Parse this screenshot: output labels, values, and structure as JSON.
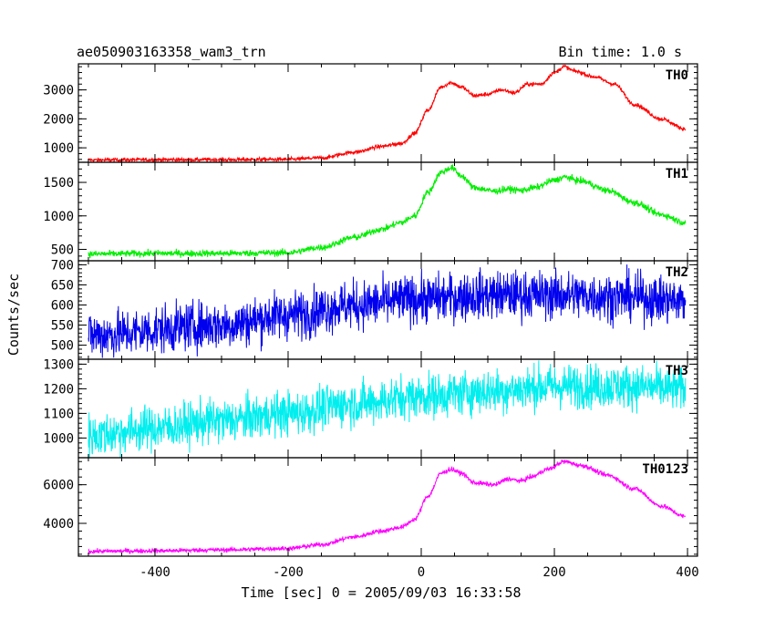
{
  "chart_data": {
    "type": "line",
    "title": "ae050903163358_wam3_trn",
    "subtitle": "Bin time: 1.0 s",
    "xlabel": "Time [sec] 0 = 2005/09/03 16:33:58",
    "ylabel": "Counts/sec",
    "xlim": [
      -515,
      415
    ],
    "x_ticks": [
      -400,
      -200,
      0,
      200,
      400
    ],
    "grid": false,
    "panels": [
      {
        "name": "TH0",
        "color": "#ff0000",
        "ylim": [
          500,
          3900
        ],
        "y_ticks": [
          1000,
          2000,
          3000
        ],
        "noise": 35,
        "curve": [
          [
            -500,
            580
          ],
          [
            -400,
            590
          ],
          [
            -300,
            590
          ],
          [
            -200,
            600
          ],
          [
            -150,
            650
          ],
          [
            -100,
            850
          ],
          [
            -60,
            1050
          ],
          [
            -30,
            1150
          ],
          [
            -10,
            1500
          ],
          [
            10,
            2300
          ],
          [
            30,
            3100
          ],
          [
            45,
            3250
          ],
          [
            60,
            3100
          ],
          [
            80,
            2800
          ],
          [
            100,
            2850
          ],
          [
            120,
            3000
          ],
          [
            140,
            2900
          ],
          [
            160,
            3200
          ],
          [
            180,
            3200
          ],
          [
            200,
            3600
          ],
          [
            215,
            3800
          ],
          [
            230,
            3650
          ],
          [
            260,
            3450
          ],
          [
            290,
            3200
          ],
          [
            320,
            2500
          ],
          [
            360,
            2000
          ],
          [
            397,
            1650
          ]
        ]
      },
      {
        "name": "TH1",
        "color": "#00ee00",
        "ylim": [
          330,
          1800
        ],
        "y_ticks": [
          500,
          1000,
          1500
        ],
        "noise": 25,
        "curve": [
          [
            -500,
            430
          ],
          [
            -400,
            440
          ],
          [
            -300,
            440
          ],
          [
            -200,
            450
          ],
          [
            -150,
            530
          ],
          [
            -100,
            680
          ],
          [
            -60,
            800
          ],
          [
            -30,
            900
          ],
          [
            -10,
            1000
          ],
          [
            10,
            1350
          ],
          [
            30,
            1650
          ],
          [
            45,
            1720
          ],
          [
            60,
            1600
          ],
          [
            80,
            1420
          ],
          [
            110,
            1370
          ],
          [
            130,
            1400
          ],
          [
            150,
            1380
          ],
          [
            170,
            1420
          ],
          [
            200,
            1530
          ],
          [
            215,
            1580
          ],
          [
            240,
            1520
          ],
          [
            280,
            1380
          ],
          [
            320,
            1200
          ],
          [
            360,
            1020
          ],
          [
            397,
            900
          ]
        ]
      },
      {
        "name": "TH2",
        "color": "#0000ee",
        "ylim": [
          465,
          710
        ],
        "y_ticks": [
          500,
          550,
          600,
          650,
          700
        ],
        "noise": 30,
        "curve": [
          [
            -500,
            525
          ],
          [
            -300,
            550
          ],
          [
            -200,
            575
          ],
          [
            -100,
            600
          ],
          [
            0,
            615
          ],
          [
            100,
            625
          ],
          [
            200,
            625
          ],
          [
            300,
            620
          ],
          [
            397,
            610
          ]
        ]
      },
      {
        "name": "TH3",
        "color": "#00eeee",
        "ylim": [
          920,
          1320
        ],
        "y_ticks": [
          1000,
          1100,
          1200,
          1300
        ],
        "noise": 45,
        "curve": [
          [
            -500,
            1010
          ],
          [
            -400,
            1040
          ],
          [
            -300,
            1070
          ],
          [
            -200,
            1100
          ],
          [
            -100,
            1140
          ],
          [
            0,
            1170
          ],
          [
            100,
            1190
          ],
          [
            200,
            1210
          ],
          [
            300,
            1210
          ],
          [
            397,
            1200
          ]
        ]
      },
      {
        "name": "TH0123",
        "color": "#ff00ff",
        "ylim": [
          2300,
          7400
        ],
        "y_ticks": [
          4000,
          6000
        ],
        "noise": 60,
        "curve": [
          [
            -500,
            2550
          ],
          [
            -400,
            2580
          ],
          [
            -300,
            2630
          ],
          [
            -200,
            2700
          ],
          [
            -150,
            2900
          ],
          [
            -100,
            3300
          ],
          [
            -60,
            3600
          ],
          [
            -30,
            3800
          ],
          [
            -10,
            4200
          ],
          [
            10,
            5400
          ],
          [
            30,
            6600
          ],
          [
            45,
            6800
          ],
          [
            60,
            6600
          ],
          [
            80,
            6100
          ],
          [
            110,
            6000
          ],
          [
            130,
            6300
          ],
          [
            150,
            6200
          ],
          [
            165,
            6400
          ],
          [
            190,
            6800
          ],
          [
            215,
            7200
          ],
          [
            240,
            7000
          ],
          [
            280,
            6500
          ],
          [
            320,
            5800
          ],
          [
            360,
            4900
          ],
          [
            397,
            4350
          ]
        ]
      }
    ]
  }
}
